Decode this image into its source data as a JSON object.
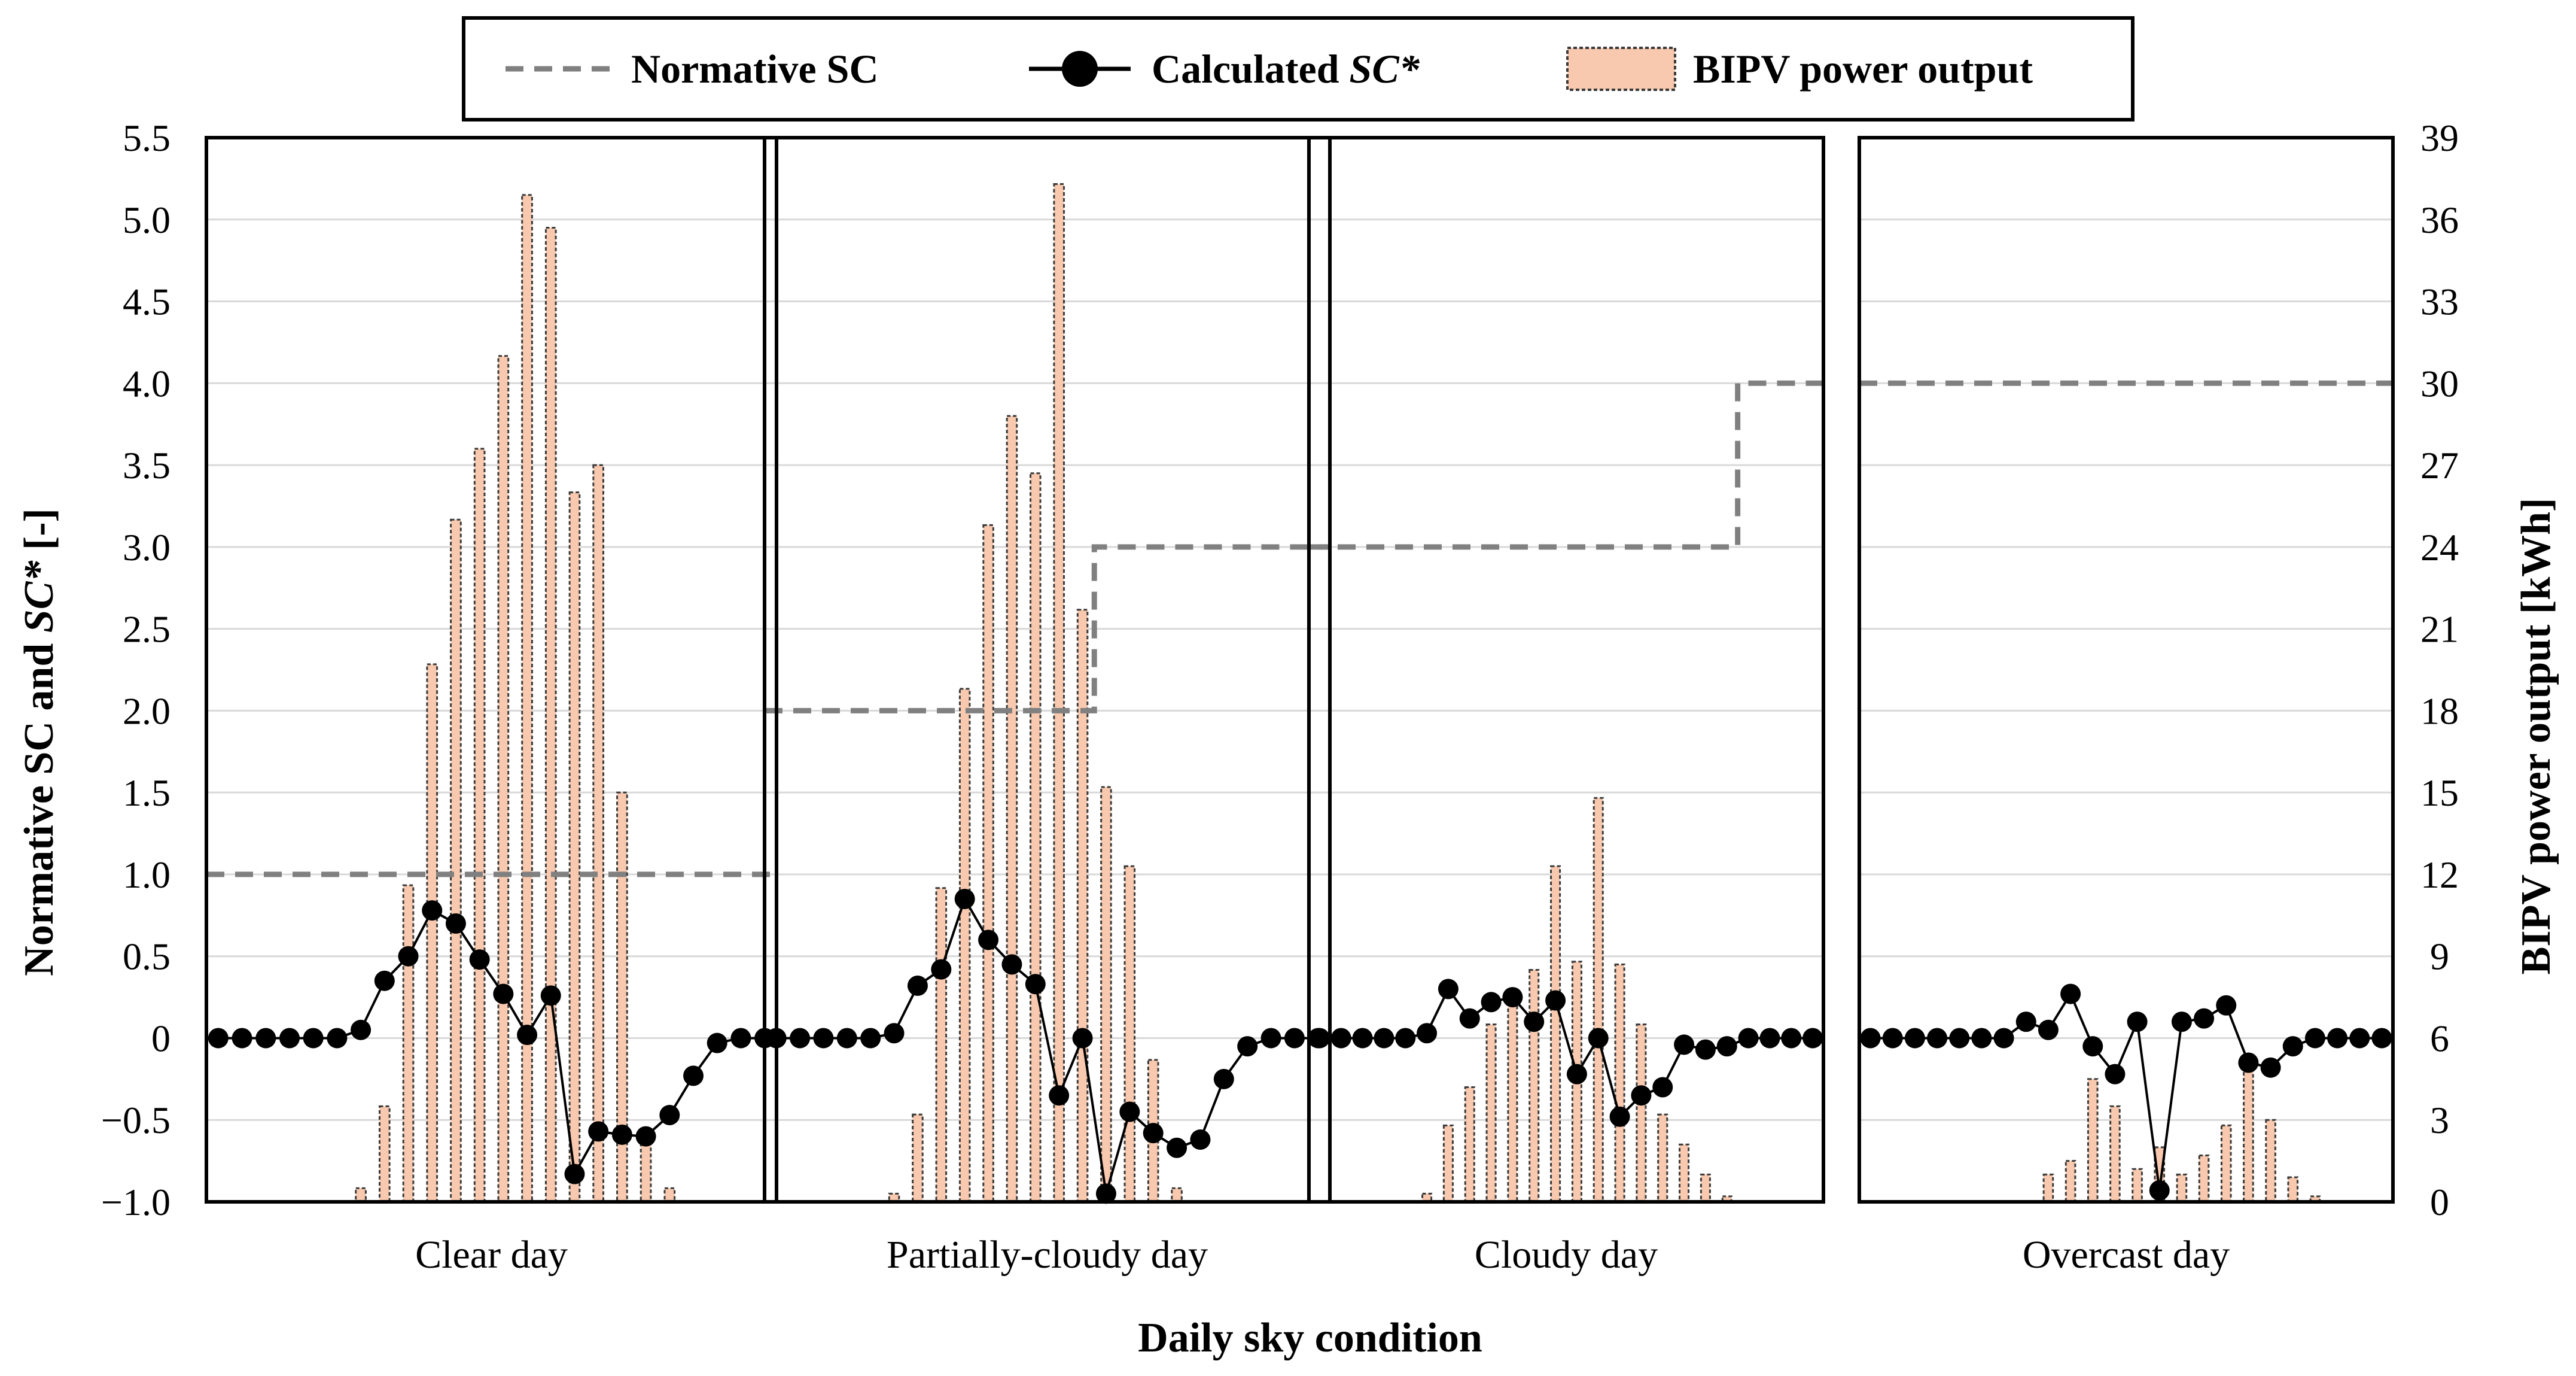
{
  "chart_data": {
    "type": "bar",
    "xlabel": "Daily sky condition",
    "ylabel_left": "Normative SC and SC* [-]",
    "ylabel_left_plain": "Normative SC and ",
    "ylabel_left_italic": "SC*",
    "ylabel_left_suffix": " [-]",
    "ylabel_right": "BIPV power output  [kWh]",
    "y_left_lim": [
      -1.0,
      5.5
    ],
    "y_right_lim": [
      0,
      39
    ],
    "y_left_ticks": [
      "5.5",
      "5.0",
      "4.5",
      "4.0",
      "3.5",
      "3.0",
      "2.5",
      "2.0",
      "1.5",
      "1.0",
      "0.5",
      "0",
      "−0.5",
      "−1.0"
    ],
    "y_left_tick_values": [
      5.5,
      5.0,
      4.5,
      4.0,
      3.5,
      3.0,
      2.5,
      2.0,
      1.5,
      1.0,
      0.5,
      0,
      -0.5,
      -1.0
    ],
    "y_right_ticks": [
      "39",
      "36",
      "33",
      "30",
      "27",
      "24",
      "21",
      "18",
      "15",
      "12",
      "9",
      "6",
      "3",
      "0"
    ],
    "y_right_tick_values": [
      39,
      36,
      33,
      30,
      27,
      24,
      21,
      18,
      15,
      12,
      9,
      6,
      3,
      0
    ],
    "grid": true,
    "legend": {
      "position": "top",
      "items": [
        {
          "label": "Normative SC",
          "style": "dashed-gray"
        },
        {
          "label": "Calculated ",
          "label_italic": "SC*",
          "style": "line-marker-black"
        },
        {
          "label": "BIPV power output",
          "style": "bar-salmon"
        }
      ]
    },
    "colors": {
      "bar_fill": "#f8c9ae",
      "bar_stroke": "#3a3a3a",
      "sc_line": "#000000",
      "normative_line": "#808080",
      "grid": "#d9d9d9"
    },
    "hours": 24,
    "panels": [
      {
        "name": "Clear day",
        "bipv_kwh": [
          0,
          0,
          0,
          0,
          0,
          0,
          0.5,
          3.5,
          11.6,
          19.7,
          25.0,
          27.6,
          31.0,
          36.9,
          35.7,
          26.0,
          27.0,
          15.0,
          2.5,
          0.5,
          0,
          0,
          0,
          0
        ],
        "sc_calculated": [
          0,
          0,
          0,
          0,
          0,
          0,
          0.05,
          0.35,
          0.5,
          0.78,
          0.7,
          0.48,
          0.27,
          0.02,
          0.26,
          -0.83,
          -0.57,
          -0.59,
          -0.6,
          -0.47,
          -0.23,
          -0.03,
          0,
          0
        ],
        "normative_sc": [
          1,
          1,
          1,
          1,
          1,
          1,
          1,
          1,
          1,
          1,
          1,
          1,
          1,
          1,
          1,
          1,
          1,
          1,
          1,
          1,
          1,
          1,
          1,
          1
        ]
      },
      {
        "name": "Partially-cloudy day",
        "bipv_kwh": [
          0,
          0,
          0,
          0,
          0,
          0.3,
          3.2,
          11.5,
          18.8,
          24.8,
          28.8,
          26.7,
          37.3,
          21.7,
          15.2,
          12.3,
          5.2,
          0.5,
          0,
          0,
          0,
          0,
          0,
          0
        ],
        "sc_calculated": [
          0,
          0,
          0,
          0,
          0,
          0.03,
          0.32,
          0.42,
          0.85,
          0.6,
          0.45,
          0.33,
          -0.35,
          0,
          -0.95,
          -0.45,
          -0.58,
          -0.67,
          -0.62,
          -0.25,
          -0.05,
          0,
          0,
          0
        ],
        "normative_sc": [
          2,
          2,
          2,
          2,
          2,
          2,
          2,
          2,
          2,
          2,
          2,
          2,
          2,
          2,
          3,
          3,
          3,
          3,
          3,
          3,
          3,
          3,
          3,
          3
        ]
      },
      {
        "name": "Cloudy day",
        "bipv_kwh": [
          0,
          0,
          0,
          0,
          0,
          0.3,
          2.8,
          4.2,
          6.5,
          7.3,
          8.5,
          12.3,
          8.8,
          14.8,
          8.7,
          6.5,
          3.2,
          2.1,
          1.0,
          0.2,
          0,
          0,
          0,
          0
        ],
        "sc_calculated": [
          0,
          0,
          0,
          0,
          0,
          0.03,
          0.3,
          0.12,
          0.22,
          0.25,
          0.1,
          0.23,
          -0.22,
          0,
          -0.48,
          -0.35,
          -0.3,
          -0.04,
          -0.07,
          -0.05,
          0,
          0,
          0,
          0
        ],
        "normative_sc": [
          3,
          3,
          3,
          3,
          3,
          3,
          3,
          3,
          3,
          3,
          3,
          3,
          3,
          3,
          3,
          3,
          3,
          3,
          3,
          3,
          4,
          4,
          4,
          4
        ]
      },
      {
        "name": "Overcast day",
        "bipv_kwh": [
          0,
          0,
          0,
          0,
          0,
          0,
          0,
          0,
          1.0,
          1.5,
          4.5,
          3.5,
          1.2,
          2.0,
          1.0,
          1.7,
          2.8,
          5.0,
          3.0,
          0.9,
          0.2,
          0,
          0,
          0
        ],
        "sc_calculated": [
          0,
          0,
          0,
          0,
          0,
          0,
          0,
          0.1,
          0.05,
          0.27,
          -0.05,
          -0.22,
          0.1,
          -0.93,
          0.1,
          0.12,
          0.2,
          -0.15,
          -0.18,
          -0.05,
          0,
          0,
          0,
          0
        ],
        "normative_sc": [
          4,
          4,
          4,
          4,
          4,
          4,
          4,
          4,
          4,
          4,
          4,
          4,
          4,
          4,
          4,
          4,
          4,
          4,
          4,
          4,
          4,
          4,
          4,
          4
        ]
      }
    ]
  }
}
